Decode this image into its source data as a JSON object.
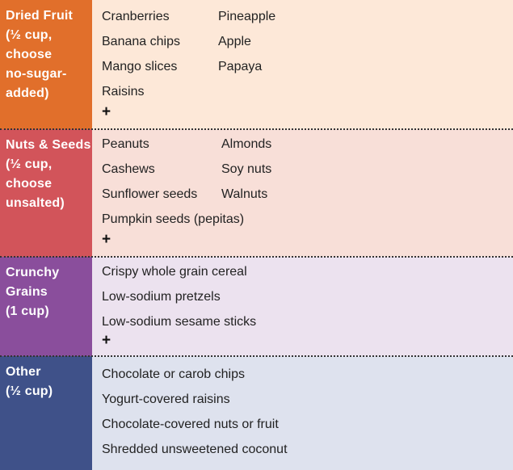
{
  "rows": [
    {
      "label": "Dried Fruit\n(½ cup,\nchoose\nno-sugar-\nadded)",
      "col1": [
        "Cranberries",
        "Banana chips",
        "Mango slices",
        "Raisins"
      ],
      "col2": [
        "Pineapple",
        "Apple",
        "Papaya"
      ],
      "plus": "+",
      "colors": {
        "label": "#e16f2b",
        "body": "#fde8d8"
      }
    },
    {
      "label": "Nuts & Seeds\n(½ cup,\nchoose\nunsalted)",
      "col1": [
        "Peanuts",
        "Cashews",
        "Sunflower seeds",
        "Pumpkin seeds (pepitas)"
      ],
      "col2": [
        "Almonds",
        "Soy nuts",
        "Walnuts"
      ],
      "plus": "+",
      "colors": {
        "label": "#d2545a",
        "body": "#f8dfd8"
      }
    },
    {
      "label": "Crunchy\nGrains\n(1 cup)",
      "col1": [
        "Crispy whole grain cereal",
        "Low-sodium pretzels",
        "Low-sodium sesame sticks"
      ],
      "plus": "+",
      "colors": {
        "label": "#8a4e9c",
        "body": "#ece2ef"
      }
    },
    {
      "label": "Other\n(½ cup)",
      "col1": [
        "Chocolate or carob chips",
        "Yogurt-covered raisins",
        "Chocolate-covered nuts or fruit",
        "Shredded unsweetened coconut"
      ],
      "colors": {
        "label": "#3f5189",
        "body": "#dee2ee"
      }
    }
  ]
}
